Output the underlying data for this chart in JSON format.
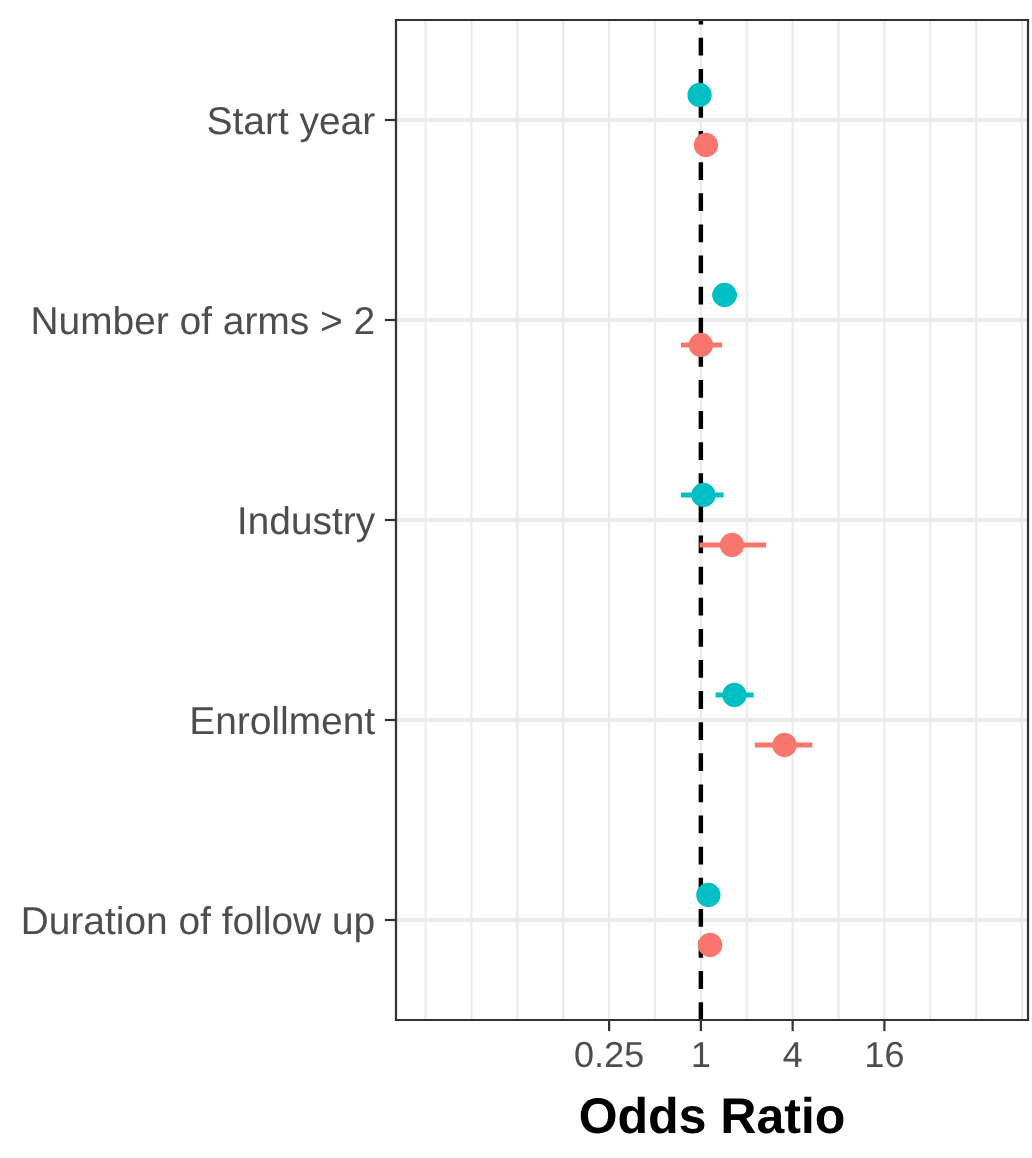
{
  "chart_data": {
    "type": "scatter",
    "orientation": "horizontal",
    "xlabel": "Odds Ratio",
    "log": "x",
    "categories": [
      "Start year",
      "Number of arms > 2",
      "Industry",
      "Enrollment",
      "Duration of follow up"
    ],
    "series": [
      {
        "color": "#00bfc4",
        "values": [
          0.98,
          1.43,
          1.04,
          1.66,
          1.12
        ],
        "errors": [
          null,
          [
            1.19,
            1.73
          ],
          [
            0.74,
            1.41
          ],
          [
            1.25,
            2.22
          ],
          null
        ]
      },
      {
        "color": "#f8766d",
        "values": [
          1.08,
          1.0,
          1.6,
          3.54,
          1.15
        ],
        "errors": [
          null,
          [
            0.74,
            1.38
          ],
          [
            0.98,
            2.68
          ],
          [
            2.26,
            5.38
          ],
          null
        ]
      }
    ],
    "xlim": [
      0.01,
      140
    ],
    "xticks": [
      0.25,
      1,
      4,
      16
    ],
    "grid": true,
    "marker": "circle",
    "ref_lines": [
      {
        "axis": "x",
        "value": 1,
        "color": "#000000",
        "line_style": "dashed"
      }
    ]
  }
}
